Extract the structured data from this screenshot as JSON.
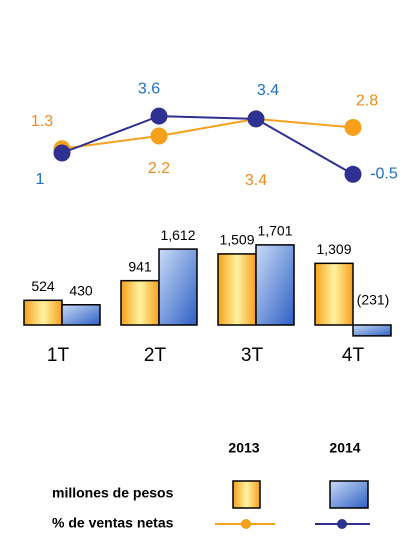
{
  "chart_data": {
    "type": "bar_line",
    "categories": [
      "1T",
      "2T",
      "3T",
      "4T"
    ],
    "ylim": [
      -300,
      2500
    ],
    "y2lim": [
      -1,
      4
    ],
    "bar_label": "millones de pesos",
    "line_label": "% de ventas netas",
    "series": [
      {
        "name": "2013",
        "color": "#f7a01c",
        "values": [
          524,
          941,
          1509,
          1309
        ],
        "value_labels": [
          "524",
          "941",
          "1,509",
          "1,309"
        ]
      },
      {
        "name": "2014",
        "color": "#4a78d6",
        "values": [
          430,
          1612,
          1701,
          -231
        ],
        "value_labels": [
          "430",
          "1,612",
          "1,701",
          "(231)"
        ]
      }
    ],
    "line_series": [
      {
        "name": "2013",
        "color": "#f7a01c",
        "label_color": "#f08a1c",
        "values": [
          1.3,
          2.2,
          3.4,
          2.8
        ]
      },
      {
        "name": "2014",
        "color": "#2e3192",
        "label_color": "#1f6fc5",
        "values": [
          1.0,
          3.6,
          3.4,
          -0.5
        ]
      }
    ]
  }
}
